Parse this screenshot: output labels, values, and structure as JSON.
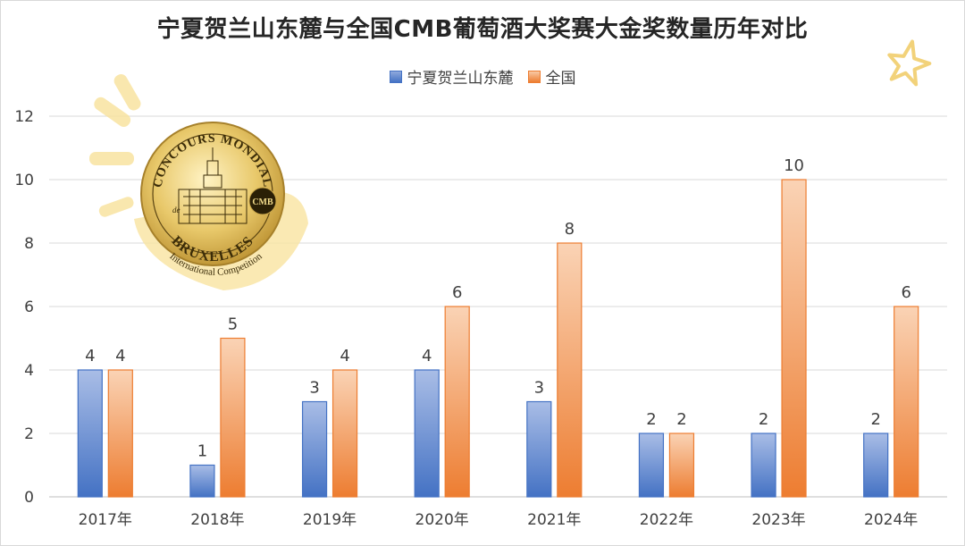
{
  "chart_data": {
    "type": "bar",
    "title": "宁夏贺兰山东麓与全国CMB葡萄酒大奖赛大金奖数量历年对比",
    "categories": [
      "2017年",
      "2018年",
      "2019年",
      "2020年",
      "2021年",
      "2022年",
      "2023年",
      "2024年"
    ],
    "series": [
      {
        "name": "宁夏贺兰山东麓",
        "values": [
          4,
          1,
          3,
          4,
          3,
          2,
          2,
          2
        ],
        "color": "#4472c4"
      },
      {
        "name": "全国",
        "values": [
          4,
          5,
          4,
          6,
          8,
          2,
          10,
          6
        ],
        "color": "#ed7d31"
      }
    ],
    "ylim": [
      0,
      12
    ],
    "yticks": [
      0,
      2,
      4,
      6,
      8,
      10,
      12
    ],
    "grid": true,
    "legend": "top-center",
    "data_labels": true
  },
  "logo": {
    "ring_top": "CONCOURS MONDIAL",
    "ring_de": "de",
    "ring_bottom": "BRUXELLES",
    "seal": "CMB",
    "subtitle": "International Competition"
  }
}
